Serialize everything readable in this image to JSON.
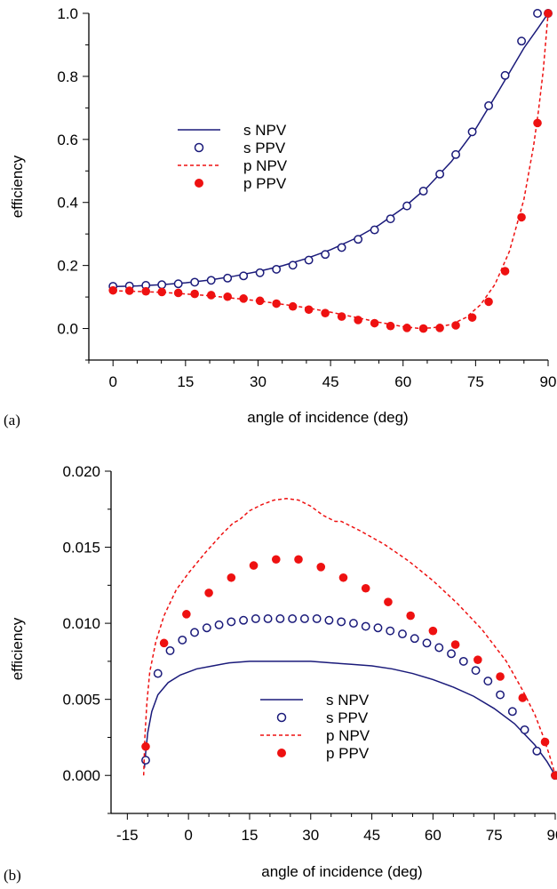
{
  "colors": {
    "s": "#1a1a7a",
    "p": "#ee1111"
  },
  "chart_data": [
    {
      "type": "line",
      "panel_label": "(a)",
      "xlabel": "angle of incidence (deg)",
      "ylabel": "efficiency",
      "xlim": [
        -5,
        90
      ],
      "ylim": [
        -0.1,
        1.0
      ],
      "xticks": [
        0,
        15,
        30,
        45,
        60,
        75,
        90
      ],
      "xtick_labels": [
        "0",
        "15",
        "30",
        "45",
        "60",
        "75",
        "90"
      ],
      "yticks": [
        0.0,
        0.2,
        0.4,
        0.6,
        0.8,
        1.0
      ],
      "ytick_labels": [
        "0.0",
        "0.2",
        "0.4",
        "0.6",
        "0.8",
        "1.0"
      ],
      "legend_position": "upper-left",
      "series": [
        {
          "name": "s NPV",
          "style": "solid-line",
          "color": "s",
          "x": [
            0,
            5,
            10,
            15,
            20,
            25,
            30,
            35,
            40,
            45,
            50,
            55,
            60,
            65,
            70,
            75,
            80,
            85,
            88,
            90
          ],
          "y": [
            0.133,
            0.135,
            0.139,
            0.145,
            0.154,
            0.166,
            0.181,
            0.199,
            0.222,
            0.25,
            0.285,
            0.328,
            0.382,
            0.448,
            0.53,
            0.633,
            0.76,
            0.89,
            0.955,
            1.0
          ]
        },
        {
          "name": "s PPV",
          "style": "open-circle",
          "color": "s",
          "x": [
            0,
            3.4,
            6.8,
            10.1,
            13.5,
            16.9,
            20.3,
            23.7,
            27.0,
            30.4,
            33.8,
            37.2,
            40.5,
            43.9,
            47.3,
            50.7,
            54.1,
            57.4,
            60.8,
            64.2,
            67.6,
            70.9,
            74.3,
            77.7,
            81.1,
            84.5,
            87.8,
            90
          ],
          "y": [
            0.134,
            0.135,
            0.137,
            0.139,
            0.142,
            0.147,
            0.153,
            0.16,
            0.167,
            0.177,
            0.188,
            0.201,
            0.217,
            0.235,
            0.257,
            0.283,
            0.313,
            0.348,
            0.389,
            0.436,
            0.49,
            0.552,
            0.624,
            0.707,
            0.803,
            0.912,
            1.0,
            1.0
          ]
        },
        {
          "name": "p NPV",
          "style": "dashed-line",
          "color": "p",
          "x": [
            0,
            10,
            20,
            30,
            40,
            45,
            50,
            55,
            60,
            63,
            66,
            70,
            73,
            76,
            79,
            82,
            85,
            87,
            88,
            89,
            90
          ],
          "y": [
            0.12,
            0.115,
            0.104,
            0.088,
            0.066,
            0.052,
            0.036,
            0.02,
            0.006,
            0.001,
            0.002,
            0.013,
            0.035,
            0.075,
            0.14,
            0.245,
            0.41,
            0.58,
            0.69,
            0.82,
            1.0
          ]
        },
        {
          "name": "p PPV",
          "style": "filled-circle",
          "color": "p",
          "x": [
            0,
            3.4,
            6.8,
            10.1,
            13.5,
            16.9,
            20.3,
            23.7,
            27.0,
            30.4,
            33.8,
            37.2,
            40.5,
            43.9,
            47.3,
            50.7,
            54.1,
            57.4,
            60.8,
            64.2,
            67.6,
            70.9,
            74.3,
            77.7,
            81.1,
            84.5,
            87.8,
            90
          ],
          "y": [
            0.121,
            0.12,
            0.118,
            0.116,
            0.113,
            0.11,
            0.106,
            0.101,
            0.095,
            0.088,
            0.079,
            0.07,
            0.06,
            0.049,
            0.038,
            0.027,
            0.017,
            0.008,
            0.002,
            0.0,
            0.002,
            0.01,
            0.035,
            0.085,
            0.182,
            0.353,
            0.652,
            1.0
          ]
        }
      ]
    },
    {
      "type": "line",
      "panel_label": "(b)",
      "xlabel": "angle of incidence (deg)",
      "ylabel": "efficiency",
      "xlim": [
        -19,
        90
      ],
      "ylim": [
        -0.0025,
        0.02
      ],
      "xticks": [
        -15,
        0,
        15,
        30,
        45,
        60,
        75,
        90
      ],
      "xtick_labels": [
        "-15",
        "0",
        "15",
        "30",
        "45",
        "60",
        "75",
        "90"
      ],
      "yticks": [
        0.0,
        0.005,
        0.01,
        0.015,
        0.02
      ],
      "ytick_labels": [
        "0.000",
        "0.005",
        "0.010",
        "0.015",
        "0.020"
      ],
      "legend_position": "lower-center",
      "series": [
        {
          "name": "s NPV",
          "style": "solid-line",
          "color": "s",
          "x": [
            -10.8,
            -10.5,
            -10.0,
            -9.0,
            -7.5,
            -5.0,
            -2.0,
            2.0,
            6.0,
            10.0,
            15.0,
            20.0,
            25.0,
            30.0,
            35.0,
            40.0,
            45.0,
            50.0,
            55.0,
            60.0,
            65.0,
            70.0,
            75.0,
            80.0,
            85.0,
            88.0,
            90.0
          ],
          "y": [
            0.0005,
            0.0015,
            0.0028,
            0.0042,
            0.0053,
            0.0061,
            0.0066,
            0.007,
            0.0072,
            0.0074,
            0.0075,
            0.0075,
            0.0075,
            0.0075,
            0.0074,
            0.0073,
            0.0072,
            0.007,
            0.0067,
            0.0063,
            0.0058,
            0.0052,
            0.0044,
            0.0034,
            0.002,
            0.0009,
            0.0
          ]
        },
        {
          "name": "s PPV",
          "style": "open-circle",
          "color": "s",
          "x": [
            -10.5,
            -7.5,
            -4.5,
            -1.5,
            1.5,
            4.5,
            7.5,
            10.5,
            13.5,
            16.5,
            19.5,
            22.5,
            25.5,
            28.5,
            31.5,
            34.5,
            37.5,
            40.5,
            43.5,
            46.5,
            49.5,
            52.5,
            55.5,
            58.5,
            61.5,
            64.5,
            67.5,
            70.5,
            73.5,
            76.5,
            79.5,
            82.5,
            85.5,
            90.0
          ],
          "y": [
            0.001,
            0.0067,
            0.0082,
            0.0089,
            0.0094,
            0.0097,
            0.0099,
            0.0101,
            0.0102,
            0.0103,
            0.0103,
            0.0103,
            0.0103,
            0.0103,
            0.0103,
            0.0102,
            0.0101,
            0.01,
            0.0098,
            0.0097,
            0.0095,
            0.0093,
            0.009,
            0.0087,
            0.0084,
            0.008,
            0.0075,
            0.0069,
            0.0062,
            0.0053,
            0.0042,
            0.003,
            0.0016,
            0.0
          ]
        },
        {
          "name": "p NPV",
          "style": "dashed-line",
          "color": "p",
          "x": [
            -11.0,
            -10.7,
            -10.2,
            -9.5,
            -8.0,
            -6.0,
            -3.0,
            0.0,
            4.0,
            8.0,
            11.0,
            12.5,
            15.0,
            18.0,
            21.0,
            24.0,
            27.0,
            30.0,
            33.0,
            36.0,
            37.5,
            39.0,
            42.0,
            48.0,
            54.0,
            60.0,
            66.0,
            72.0,
            78.0,
            82.0,
            85.0,
            87.0,
            88.5,
            89.5,
            90.0
          ],
          "y": [
            0.0,
            0.0025,
            0.0048,
            0.0068,
            0.0088,
            0.0105,
            0.0122,
            0.0133,
            0.0146,
            0.0158,
            0.0166,
            0.0168,
            0.0174,
            0.0178,
            0.0181,
            0.0182,
            0.0181,
            0.0177,
            0.0171,
            0.0167,
            0.0167,
            0.0165,
            0.0161,
            0.0152,
            0.0141,
            0.0128,
            0.0113,
            0.0096,
            0.0075,
            0.0056,
            0.004,
            0.0026,
            0.0014,
            0.0005,
            0.0
          ]
        },
        {
          "name": "p PPV",
          "style": "filled-circle",
          "color": "p",
          "x": [
            -10.5,
            -6.0,
            -0.5,
            5.0,
            10.5,
            16.0,
            21.5,
            27.0,
            32.5,
            38.0,
            43.5,
            49.0,
            54.5,
            60.0,
            65.5,
            71.0,
            76.5,
            82.0,
            87.5,
            90.0
          ],
          "y": [
            0.0019,
            0.0087,
            0.0106,
            0.012,
            0.013,
            0.0138,
            0.0142,
            0.0142,
            0.0137,
            0.013,
            0.0123,
            0.0114,
            0.0105,
            0.0095,
            0.0086,
            0.0076,
            0.0065,
            0.0051,
            0.0022,
            0.0
          ]
        }
      ]
    }
  ]
}
